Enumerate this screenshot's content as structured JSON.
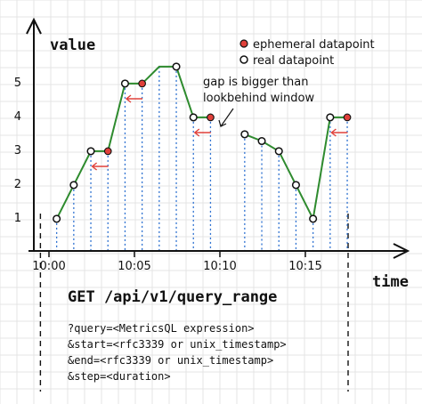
{
  "chart_data": {
    "type": "line",
    "ylabel": "value",
    "xlabel": "time",
    "x_ticks": [
      "10:00",
      "10:05",
      "10:10",
      "10:15"
    ],
    "y_ticks": [
      "1",
      "2",
      "3",
      "4",
      "5"
    ],
    "ylim": [
      0,
      6
    ],
    "xlim_minutes": [
      -0.5,
      17.5
    ],
    "grid": true,
    "legend": {
      "position": "top-right",
      "entries": [
        {
          "name": "ephemeral datapoint",
          "marker": "filled",
          "color": "#e0403a"
        },
        {
          "name": "real datapoint",
          "marker": "hollow",
          "color": "#ffffff"
        }
      ]
    },
    "series": [
      {
        "points": [
          {
            "t": 0.45,
            "v": 0.95,
            "kind": "real"
          },
          {
            "t": 1.45,
            "v": 1.95,
            "kind": "real"
          },
          {
            "t": 2.45,
            "v": 2.95,
            "kind": "real"
          },
          {
            "t": 3.45,
            "v": 2.95,
            "kind": "ephemeral"
          },
          {
            "t": 4.45,
            "v": 4.95,
            "kind": "real"
          },
          {
            "t": 5.45,
            "v": 4.95,
            "kind": "ephemeral"
          },
          {
            "t": 6.45,
            "v": 5.45,
            "kind": "none"
          },
          {
            "t": 7.45,
            "v": 5.45,
            "kind": "real"
          },
          {
            "t": 8.45,
            "v": 3.95,
            "kind": "real"
          },
          {
            "t": 9.45,
            "v": 3.95,
            "kind": "ephemeral"
          },
          {
            "t": 11.45,
            "v": 3.45,
            "kind": "real",
            "gap_before": true
          },
          {
            "t": 12.45,
            "v": 3.25,
            "kind": "real"
          },
          {
            "t": 13.45,
            "v": 2.95,
            "kind": "real"
          },
          {
            "t": 14.45,
            "v": 1.95,
            "kind": "real"
          },
          {
            "t": 15.45,
            "v": 0.95,
            "kind": "real"
          },
          {
            "t": 16.45,
            "v": 3.95,
            "kind": "real"
          },
          {
            "t": 17.45,
            "v": 3.95,
            "kind": "ephemeral"
          }
        ]
      }
    ],
    "lookbehind_arrows": [
      {
        "t": 3.0,
        "v": 2.5
      },
      {
        "t": 5.0,
        "v": 4.5
      },
      {
        "t": 9.0,
        "v": 3.5
      },
      {
        "t": 17.0,
        "v": 3.5
      }
    ],
    "annotation": {
      "lines": [
        "gap is bigger than",
        "lookbehind window"
      ],
      "arrow_target": {
        "t": 10.45,
        "v": 3.6
      }
    },
    "range_markers_minutes": [
      -0.5,
      17.5
    ],
    "colors": {
      "line": "#2e8b2e",
      "ephemeral": "#e0403a",
      "drop_lines": "#2a6fd0",
      "lookbehind_arrow": "#e0403a",
      "grid": "#e4e4e4",
      "axis": "#111111"
    }
  },
  "request": {
    "title": "GET /api/v1/query_range",
    "params": [
      "?query=<MetricsQL expression>",
      "&start=<rfc3339 or unix_timestamp>",
      "&end=<rfc3339 or unix_timestamp>",
      "&step=<duration>"
    ]
  }
}
